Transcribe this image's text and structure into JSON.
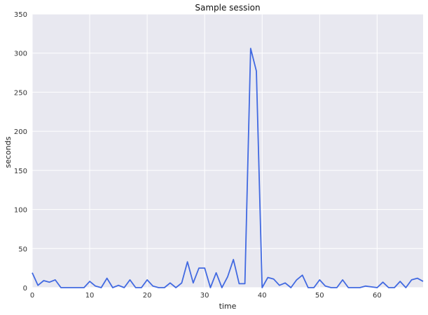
{
  "chart_data": {
    "type": "line",
    "title": "Sample session",
    "xlabel": "time",
    "ylabel": "seconds",
    "xlim": [
      0,
      68
    ],
    "ylim": [
      0,
      350
    ],
    "xticks": [
      0,
      10,
      20,
      30,
      40,
      50,
      60
    ],
    "yticks": [
      0,
      50,
      100,
      150,
      200,
      250,
      300,
      350
    ],
    "grid": true,
    "background": "#E8E8F0",
    "grid_color": "#FFFFFF",
    "line_color": "#4169E1",
    "series": [
      {
        "x": [
          0,
          1,
          2,
          3,
          4,
          5,
          6,
          7,
          8,
          9,
          10,
          11,
          12,
          13,
          14,
          15,
          16,
          17,
          18,
          19,
          20,
          21,
          22,
          23,
          24,
          25,
          26,
          27,
          28,
          29,
          30,
          31,
          32,
          33,
          34,
          35,
          36,
          37,
          38,
          39,
          40,
          41,
          42,
          43,
          44,
          45,
          46,
          47,
          48,
          49,
          50,
          51,
          52,
          53,
          54,
          55,
          56,
          57,
          58,
          59,
          60,
          61,
          62,
          63,
          64,
          65,
          66,
          67,
          68
        ],
        "y": [
          19,
          3,
          9,
          7,
          10,
          0,
          0,
          0,
          0,
          0,
          8,
          2,
          0,
          12,
          0,
          3,
          0,
          10,
          0,
          0,
          10,
          2,
          0,
          0,
          6,
          0,
          6,
          33,
          6,
          25,
          25,
          0,
          19,
          0,
          14,
          36,
          5,
          5,
          306,
          277,
          0,
          13,
          11,
          3,
          6,
          0,
          10,
          16,
          0,
          0,
          10,
          2,
          0,
          0,
          10,
          0,
          0,
          0,
          2,
          1,
          0,
          7,
          0,
          0,
          8,
          0,
          10,
          12,
          8
        ]
      }
    ]
  }
}
